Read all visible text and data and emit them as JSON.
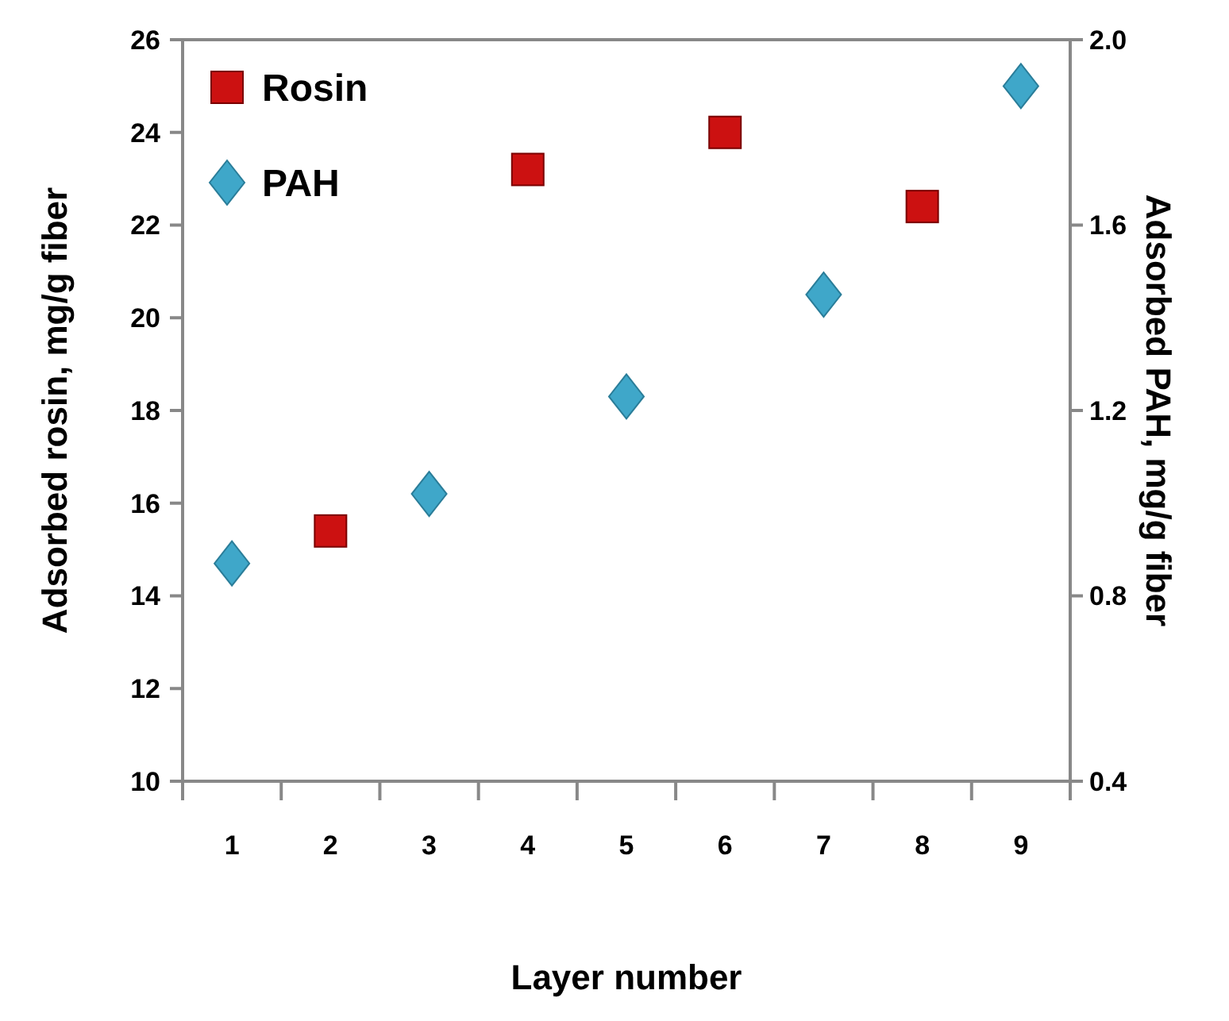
{
  "chart_data": {
    "type": "scatter",
    "xlabel": "Layer number",
    "ylabel": "Adsorbed rosin, mg/g fiber",
    "y2label": "Adsorbed PAH, mg/g fiber",
    "categories": [
      "1",
      "2",
      "3",
      "4",
      "5",
      "6",
      "7",
      "8",
      "9"
    ],
    "series": [
      {
        "name": "Rosin",
        "color": "#cc1111",
        "marker": "square",
        "values": [
          null,
          15.4,
          null,
          23.2,
          null,
          24.0,
          null,
          22.4,
          null
        ]
      },
      {
        "name": "PAH",
        "color": "#3fa7c9",
        "marker": "diamond",
        "axis": "y2",
        "values": [
          0.87,
          null,
          1.02,
          null,
          1.23,
          null,
          1.45,
          null,
          1.9
        ]
      }
    ],
    "ylim": [
      10,
      26
    ],
    "yticks": [
      10,
      12,
      14,
      16,
      18,
      20,
      22,
      24,
      26
    ],
    "y2lim": [
      0.4,
      2.0
    ],
    "y2ticks": [
      {
        "value": 0.4,
        "label": "0.4"
      },
      {
        "value": 0.8,
        "label": "0.8"
      },
      {
        "value": 1.2,
        "label": "1.2"
      },
      {
        "value": 1.6,
        "label": "1.6"
      },
      {
        "value": 2.0,
        "label": "2.0"
      }
    ],
    "legend": "top left",
    "grid": false
  }
}
